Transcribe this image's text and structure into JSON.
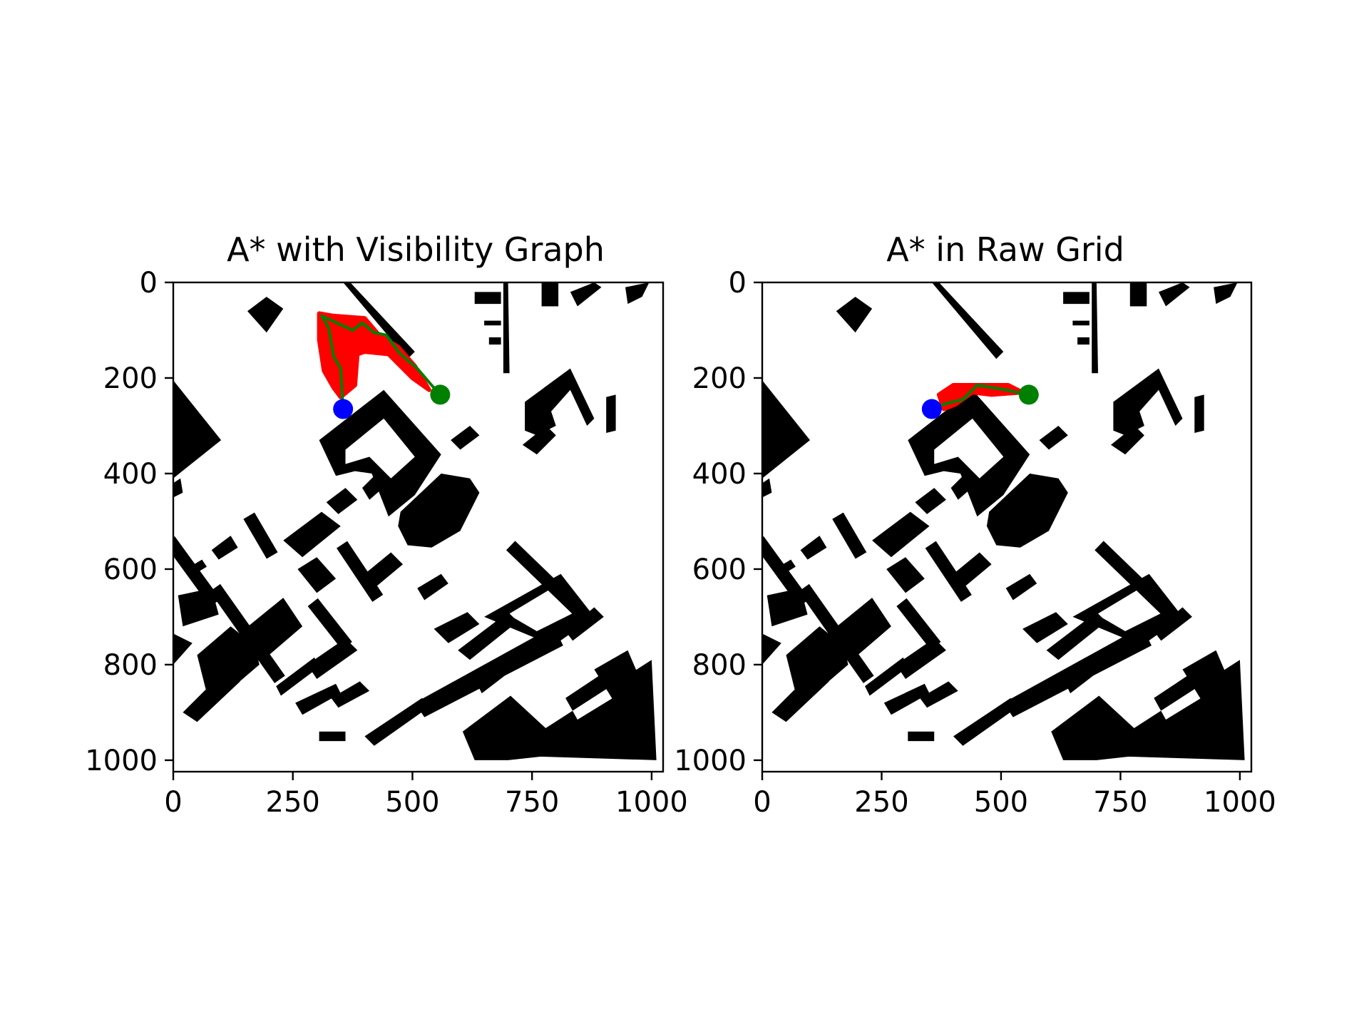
{
  "colors": {
    "obstacle": "#000000",
    "background": "#ffffff",
    "explored": "#ff0000",
    "path": "#007f00",
    "start_marker": "#0000ff",
    "goal_marker": "#008000"
  },
  "chart_data": [
    {
      "type": "scatter",
      "title": "A* with Visibility Graph",
      "xlim": [
        0,
        1024
      ],
      "ylim": [
        1024,
        0
      ],
      "y_inverted": true,
      "grid": false,
      "xticks": [
        "0",
        "250",
        "500",
        "750",
        "1000"
      ],
      "yticks": [
        "0",
        "200",
        "400",
        "600",
        "800",
        "1000"
      ],
      "start": [
        355,
        265
      ],
      "goal": [
        558,
        235
      ],
      "explored_region": [
        [
          305,
          65
        ],
        [
          335,
          70
        ],
        [
          400,
          75
        ],
        [
          430,
          110
        ],
        [
          470,
          135
        ],
        [
          505,
          175
        ],
        [
          535,
          225
        ],
        [
          500,
          200
        ],
        [
          450,
          150
        ],
        [
          400,
          145
        ],
        [
          385,
          150
        ],
        [
          380,
          215
        ],
        [
          350,
          240
        ],
        [
          335,
          220
        ],
        [
          315,
          185
        ],
        [
          305,
          120
        ]
      ],
      "path": [
        [
          355,
          265
        ],
        [
          350,
          180
        ],
        [
          335,
          155
        ],
        [
          325,
          95
        ],
        [
          310,
          70
        ],
        [
          375,
          100
        ],
        [
          395,
          85
        ],
        [
          420,
          105
        ],
        [
          445,
          110
        ],
        [
          475,
          150
        ],
        [
          510,
          180
        ],
        [
          540,
          215
        ],
        [
          558,
          235
        ]
      ]
    },
    {
      "type": "scatter",
      "title": "A* in Raw Grid",
      "xlim": [
        0,
        1024
      ],
      "ylim": [
        1024,
        0
      ],
      "y_inverted": true,
      "grid": false,
      "xticks": [
        "0",
        "250",
        "500",
        "750",
        "1000"
      ],
      "yticks": [
        "0",
        "200",
        "400",
        "600",
        "800",
        "1000"
      ],
      "start": [
        355,
        265
      ],
      "goal": [
        558,
        235
      ],
      "explored_region": [
        [
          370,
          235
        ],
        [
          400,
          215
        ],
        [
          515,
          215
        ],
        [
          545,
          230
        ],
        [
          480,
          235
        ],
        [
          440,
          230
        ],
        [
          405,
          255
        ],
        [
          380,
          265
        ]
      ],
      "path": [
        [
          355,
          265
        ],
        [
          380,
          255
        ],
        [
          420,
          245
        ],
        [
          450,
          215
        ],
        [
          510,
          225
        ],
        [
          558,
          235
        ]
      ]
    }
  ],
  "map": {
    "polygons": [
      [
        [
          0,
          205
        ],
        [
          100,
          330
        ],
        [
          0,
          410
        ]
      ],
      [
        [
          0,
          420
        ],
        [
          15,
          410
        ],
        [
          20,
          440
        ],
        [
          0,
          450
        ]
      ],
      [
        [
          195,
          30
        ],
        [
          230,
          55
        ],
        [
          195,
          105
        ],
        [
          155,
          60
        ]
      ],
      [
        [
          355,
          0
        ],
        [
          370,
          0
        ],
        [
          505,
          145
        ],
        [
          490,
          160
        ]
      ],
      [
        [
          690,
          0
        ],
        [
          700,
          0
        ],
        [
          703,
          190
        ],
        [
          690,
          190
        ]
      ],
      [
        [
          630,
          20
        ],
        [
          685,
          20
        ],
        [
          685,
          45
        ],
        [
          630,
          45
        ]
      ],
      [
        [
          650,
          80
        ],
        [
          685,
          80
        ],
        [
          685,
          90
        ],
        [
          650,
          90
        ]
      ],
      [
        [
          660,
          115
        ],
        [
          685,
          115
        ],
        [
          685,
          130
        ],
        [
          660,
          130
        ]
      ],
      [
        [
          770,
          0
        ],
        [
          805,
          0
        ],
        [
          805,
          50
        ],
        [
          770,
          50
        ]
      ],
      [
        [
          830,
          20
        ],
        [
          880,
          0
        ],
        [
          895,
          10
        ],
        [
          845,
          50
        ]
      ],
      [
        [
          945,
          10
        ],
        [
          995,
          0
        ],
        [
          980,
          30
        ],
        [
          950,
          45
        ]
      ],
      [
        [
          735,
          250
        ],
        [
          830,
          180
        ],
        [
          880,
          285
        ],
        [
          865,
          300
        ],
        [
          830,
          225
        ],
        [
          790,
          270
        ],
        [
          800,
          300
        ],
        [
          760,
          320
        ],
        [
          735,
          310
        ]
      ],
      [
        [
          730,
          340
        ],
        [
          780,
          300
        ],
        [
          800,
          320
        ],
        [
          760,
          360
        ]
      ],
      [
        [
          905,
          240
        ],
        [
          925,
          235
        ],
        [
          925,
          310
        ],
        [
          905,
          315
        ]
      ],
      [
        [
          475,
          480
        ],
        [
          560,
          400
        ],
        [
          620,
          410
        ],
        [
          640,
          440
        ],
        [
          600,
          520
        ],
        [
          540,
          555
        ],
        [
          490,
          550
        ],
        [
          470,
          510
        ]
      ],
      [
        [
          510,
          640
        ],
        [
          560,
          610
        ],
        [
          575,
          630
        ],
        [
          525,
          665
        ]
      ],
      [
        [
          150,
          725
        ],
        [
          230,
          660
        ],
        [
          270,
          720
        ],
        [
          200,
          780
        ]
      ],
      [
        [
          10,
          655
        ],
        [
          80,
          640
        ],
        [
          95,
          695
        ],
        [
          20,
          720
        ]
      ],
      [
        [
          0,
          735
        ],
        [
          40,
          755
        ],
        [
          0,
          800
        ]
      ],
      [
        [
          50,
          780
        ],
        [
          120,
          720
        ],
        [
          170,
          760
        ],
        [
          180,
          800
        ],
        [
          110,
          860
        ],
        [
          70,
          860
        ]
      ],
      [
        [
          20,
          900
        ],
        [
          110,
          810
        ],
        [
          140,
          835
        ],
        [
          50,
          920
        ]
      ],
      [
        [
          280,
          800
        ],
        [
          360,
          745
        ],
        [
          385,
          770
        ],
        [
          300,
          830
        ]
      ],
      [
        [
          330,
          870
        ],
        [
          390,
          835
        ],
        [
          410,
          855
        ],
        [
          345,
          890
        ]
      ],
      [
        [
          400,
          950
        ],
        [
          520,
          870
        ],
        [
          540,
          885
        ],
        [
          420,
          970
        ]
      ],
      [
        [
          305,
          940
        ],
        [
          360,
          940
        ],
        [
          360,
          960
        ],
        [
          305,
          960
        ]
      ],
      [
        [
          215,
          845
        ],
        [
          295,
          785
        ],
        [
          305,
          805
        ],
        [
          225,
          865
        ]
      ],
      [
        [
          255,
          880
        ],
        [
          340,
          840
        ],
        [
          350,
          860
        ],
        [
          270,
          905
        ]
      ],
      [
        [
          595,
          770
        ],
        [
          700,
          690
        ],
        [
          720,
          710
        ],
        [
          620,
          790
        ]
      ],
      [
        [
          635,
          840
        ],
        [
          760,
          740
        ],
        [
          775,
          760
        ],
        [
          645,
          860
        ]
      ],
      [
        [
          820,
          730
        ],
        [
          880,
          680
        ],
        [
          900,
          700
        ],
        [
          835,
          750
        ]
      ],
      [
        [
          505,
          880
        ],
        [
          795,
          720
        ],
        [
          815,
          760
        ],
        [
          525,
          910
        ]
      ],
      [
        [
          605,
          940
        ],
        [
          705,
          865
        ],
        [
          835,
          985
        ],
        [
          700,
          1000
        ],
        [
          630,
          1000
        ]
      ],
      [
        [
          880,
          810
        ],
        [
          950,
          770
        ],
        [
          980,
          840
        ],
        [
          920,
          875
        ]
      ],
      [
        [
          545,
          725
        ],
        [
          615,
          690
        ],
        [
          640,
          715
        ],
        [
          575,
          755
        ]
      ],
      [
        [
          230,
          540
        ],
        [
          310,
          480
        ],
        [
          350,
          510
        ],
        [
          270,
          575
        ]
      ],
      [
        [
          260,
          600
        ],
        [
          300,
          575
        ],
        [
          340,
          620
        ],
        [
          300,
          650
        ]
      ],
      [
        [
          400,
          610
        ],
        [
          455,
          565
        ],
        [
          480,
          590
        ],
        [
          420,
          640
        ]
      ],
      [
        [
          80,
          560
        ],
        [
          120,
          530
        ],
        [
          135,
          555
        ],
        [
          95,
          580
        ]
      ],
      [
        [
          35,
          595
        ],
        [
          60,
          580
        ],
        [
          70,
          595
        ],
        [
          45,
          610
        ]
      ],
      [
        [
          320,
          460
        ],
        [
          360,
          430
        ],
        [
          385,
          455
        ],
        [
          345,
          485
        ]
      ],
      [
        [
          395,
          430
        ],
        [
          430,
          395
        ],
        [
          450,
          420
        ],
        [
          410,
          455
        ]
      ],
      [
        [
          490,
          380
        ],
        [
          530,
          350
        ],
        [
          545,
          370
        ],
        [
          505,
          400
        ]
      ],
      [
        [
          580,
          330
        ],
        [
          620,
          300
        ],
        [
          640,
          320
        ],
        [
          600,
          350
        ]
      ]
    ],
    "rings": [
      {
        "outer": [
          [
            305,
            330
          ],
          [
            440,
            225
          ],
          [
            560,
            360
          ],
          [
            505,
            445
          ],
          [
            450,
            490
          ],
          [
            415,
            400
          ],
          [
            380,
            395
          ],
          [
            340,
            405
          ]
        ],
        "inner": [
          [
            360,
            350
          ],
          [
            440,
            285
          ],
          [
            505,
            365
          ],
          [
            455,
            410
          ],
          [
            410,
            365
          ],
          [
            360,
            380
          ]
        ]
      },
      {
        "outer": [
          [
            650,
            700
          ],
          [
            810,
            610
          ],
          [
            880,
            700
          ],
          [
            795,
            760
          ]
        ],
        "inner": [
          [
            700,
            695
          ],
          [
            800,
            635
          ],
          [
            840,
            690
          ],
          [
            760,
            730
          ]
        ]
      },
      {
        "outer": [
          [
            690,
            990
          ],
          [
            1000,
            790
          ],
          [
            1010,
            1000
          ]
        ],
        "inner": [
          [
            820,
            870
          ],
          [
            910,
            810
          ],
          [
            935,
            860
          ],
          [
            845,
            915
          ]
        ]
      }
    ],
    "strokes": [
      [
        [
          95,
          650
        ],
        [
          215,
          820
        ]
      ],
      [
        [
          0,
          550
        ],
        [
          80,
          660
        ]
      ],
      [
        [
          360,
          560
        ],
        [
          420,
          650
        ]
      ],
      [
        [
          715,
          560
        ],
        [
          860,
          700
        ]
      ],
      [
        [
          300,
          680
        ],
        [
          355,
          750
        ]
      ],
      [
        [
          165,
          500
        ],
        [
          200,
          560
        ]
      ]
    ]
  }
}
